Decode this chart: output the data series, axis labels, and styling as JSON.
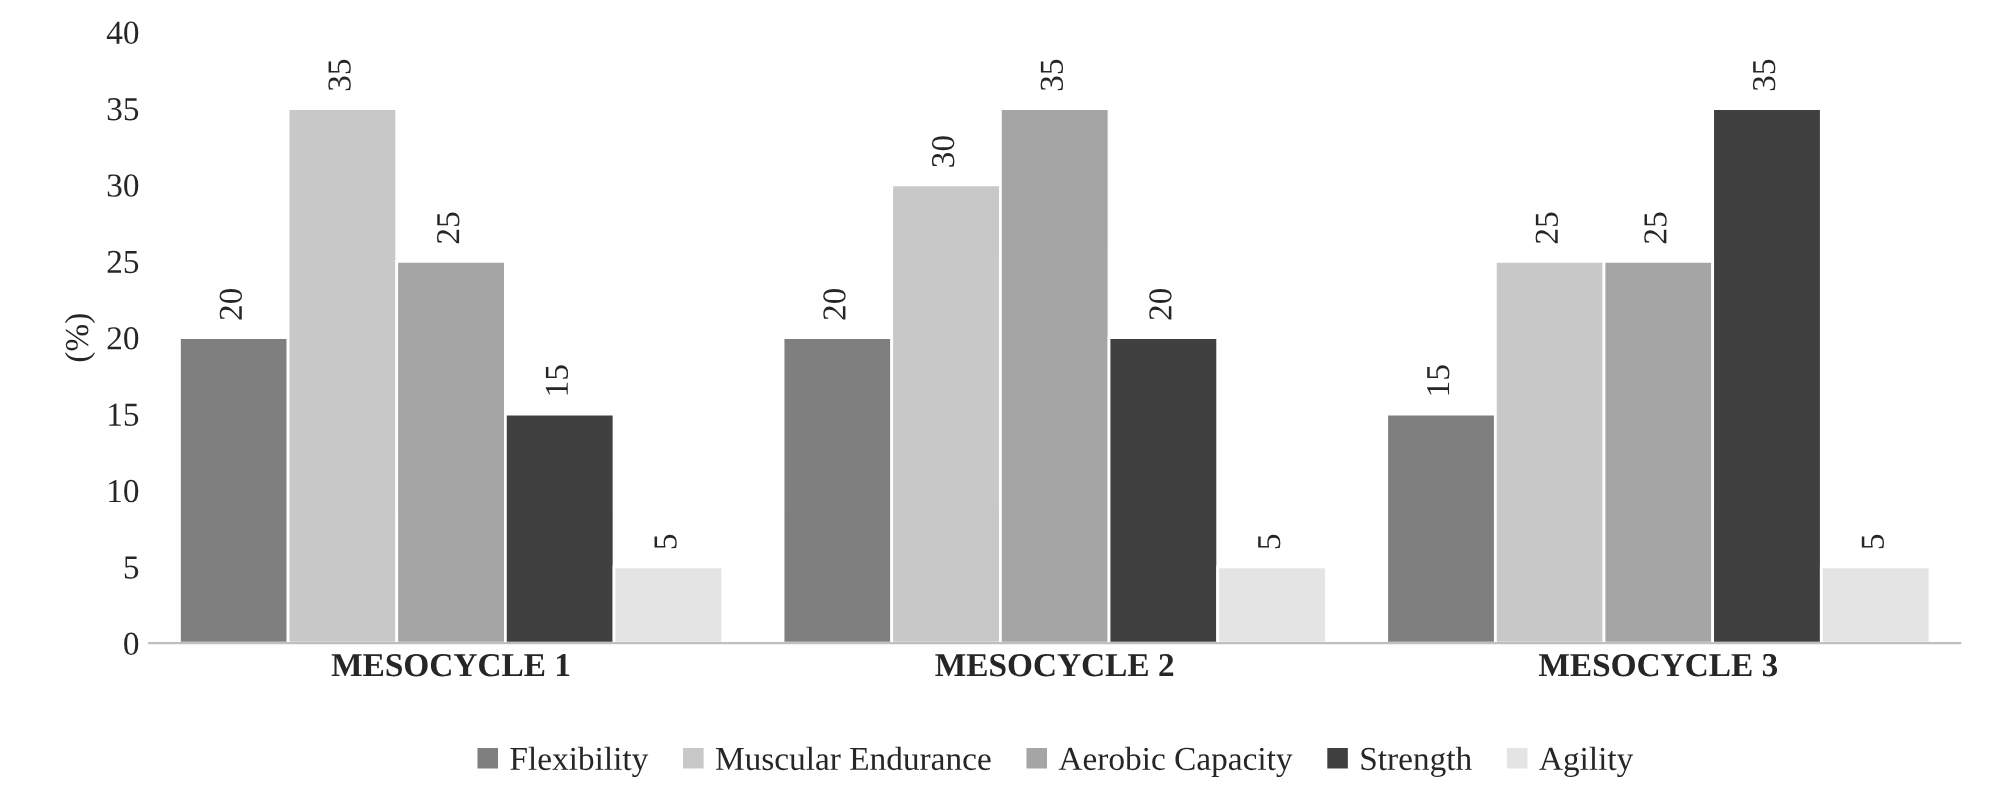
{
  "chart_data": {
    "type": "bar",
    "ylabel": "(%)",
    "categories": [
      "MESOCYCLE 1",
      "MESOCYCLE 2",
      "MESOCYCLE 3"
    ],
    "series": [
      {
        "name": "Flexibility",
        "color": "#7f7f7f",
        "values": [
          20,
          20,
          15
        ]
      },
      {
        "name": "Muscular Endurance",
        "color": "#c8c8c8",
        "values": [
          35,
          30,
          25
        ]
      },
      {
        "name": "Aerobic Capacity",
        "color": "#a5a5a5",
        "values": [
          25,
          35,
          25
        ]
      },
      {
        "name": "Strength",
        "color": "#404040",
        "values": [
          15,
          20,
          35
        ]
      },
      {
        "name": "Agility",
        "color": "#e4e4e4",
        "values": [
          5,
          5,
          5
        ]
      }
    ],
    "ylim": [
      0,
      40
    ],
    "yticks": [
      0,
      5,
      10,
      15,
      20,
      25,
      30,
      35,
      40
    ],
    "data_labels": true,
    "grid": false,
    "legend": "bottom"
  }
}
